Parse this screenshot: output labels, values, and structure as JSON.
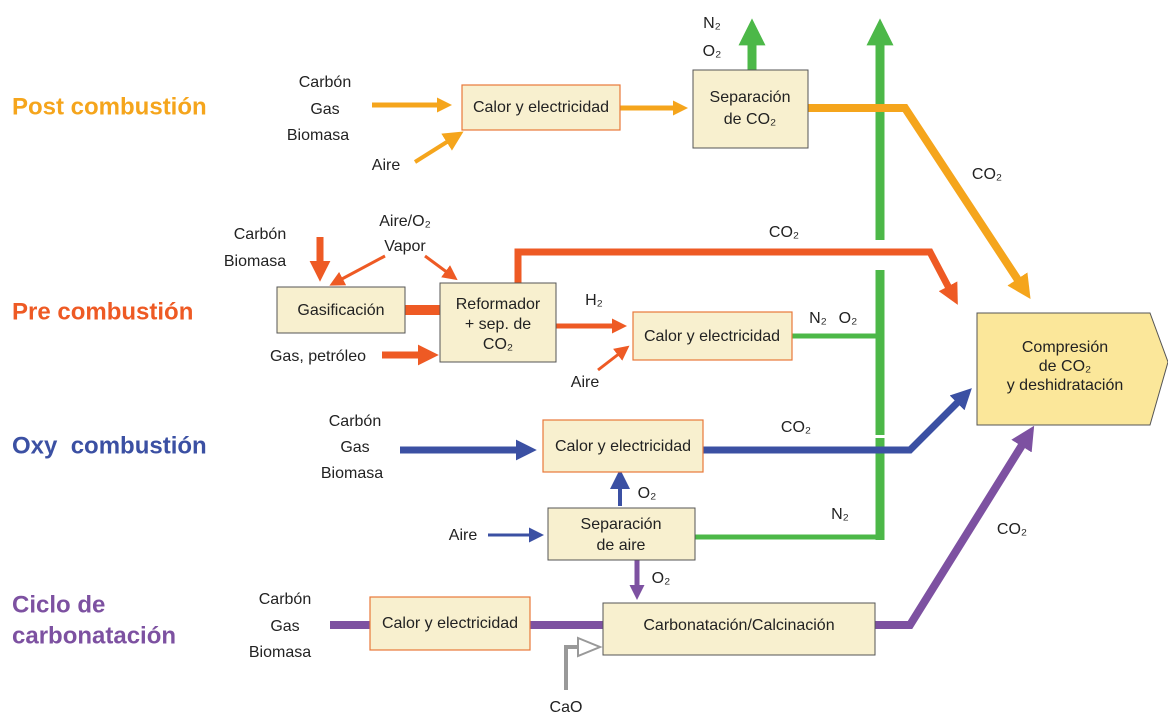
{
  "post": {
    "title": "Post combustión",
    "fuels": [
      "Carbón",
      "Gas",
      "Biomasa"
    ],
    "air": "Aire",
    "power": "Calor y electricidad",
    "separation": [
      "Separación",
      "de CO₂"
    ],
    "vent": [
      "N₂",
      "O₂"
    ],
    "co2": "CO₂"
  },
  "pre": {
    "title": "Pre combustión",
    "fuels": [
      "Carbón",
      "Biomasa"
    ],
    "oxidant": [
      "Aire/O₂",
      "Vapor"
    ],
    "gasification": "Gasificación",
    "oil": "Gas, petróleo",
    "reformer": [
      "Reformador",
      "+ sep. de",
      "CO₂"
    ],
    "h2": "H₂",
    "air": "Aire",
    "power": "Calor y electricidad",
    "co2": "CO₂",
    "exhaust": [
      "N₂",
      "O₂"
    ]
  },
  "oxy": {
    "title": "Oxy  combustión",
    "fuels": [
      "Carbón",
      "Gas",
      "Biomasa"
    ],
    "power": "Calor y electricidad",
    "co2": "CO₂",
    "o2": "O₂",
    "air": "Aire",
    "air_separation": [
      "Separación",
      "de aire"
    ],
    "n2": "N₂"
  },
  "carbonation": {
    "title": [
      "Ciclo de",
      "carbonatación"
    ],
    "fuels": [
      "Carbón",
      "Gas",
      "Biomasa"
    ],
    "power": "Calor y electricidad",
    "o2": "O₂",
    "reactor": "Carbonatación/Calcinación",
    "cao": "CaO",
    "co2": "CO₂"
  },
  "compression": [
    "Compresión",
    "de CO₂",
    "y deshidratación"
  ]
}
